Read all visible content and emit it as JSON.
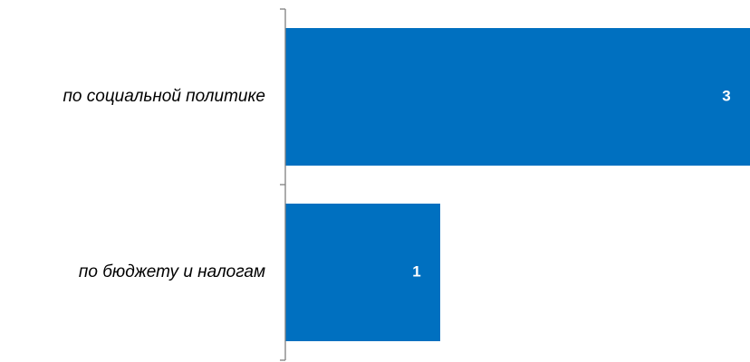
{
  "chart_data": {
    "type": "bar",
    "orientation": "horizontal",
    "categories": [
      "по социальной политике",
      "по бюджету и налогам"
    ],
    "values": [
      3,
      1
    ],
    "data_labels": [
      "3",
      "1"
    ],
    "title": "",
    "xlabel": "",
    "ylabel": "",
    "xlim": [
      0,
      3
    ],
    "grid": false,
    "legend": "none",
    "colors": {
      "bar": "#0070C0",
      "axis": "#808080",
      "label_text": "#000000",
      "data_label_text": "#ffffff"
    }
  }
}
